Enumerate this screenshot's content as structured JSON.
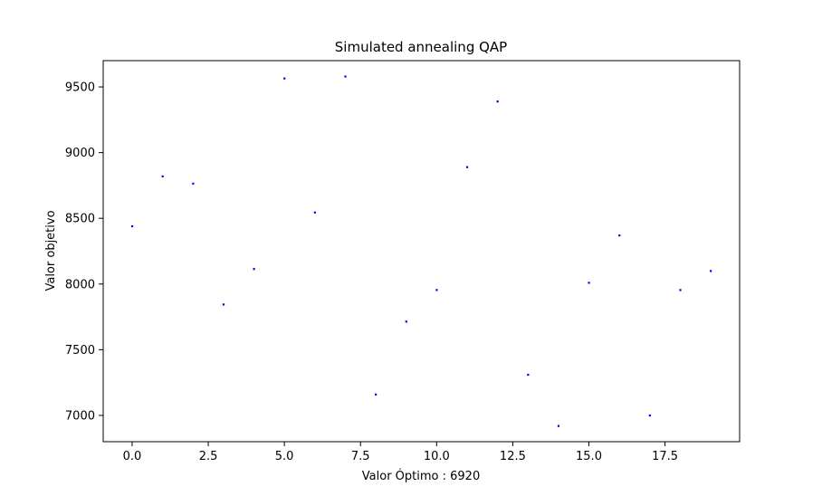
{
  "chart_data": {
    "type": "scatter",
    "title": "Simulated annealing QAP",
    "xlabel": "Valor Óptimo : 6920",
    "ylabel": "Valor objetivo",
    "x": [
      0,
      1,
      2,
      3,
      4,
      5,
      6,
      7,
      8,
      9,
      10,
      11,
      12,
      13,
      14,
      15,
      16,
      17,
      18,
      19
    ],
    "y": [
      8440,
      8820,
      8765,
      7845,
      8115,
      9565,
      8545,
      9580,
      7160,
      7715,
      7955,
      8890,
      9390,
      7310,
      6920,
      8010,
      8370,
      7000,
      7955,
      8100
    ],
    "xlim": [
      -0.95,
      19.95
    ],
    "ylim": [
      6800,
      9700
    ],
    "xticks": [
      0.0,
      2.5,
      5.0,
      7.5,
      10.0,
      12.5,
      15.0,
      17.5
    ],
    "xtick_labels": [
      "0.0",
      "2.5",
      "5.0",
      "7.5",
      "10.0",
      "12.5",
      "15.0",
      "17.5"
    ],
    "yticks": [
      7000,
      7500,
      8000,
      8500,
      9000,
      9500
    ],
    "ytick_labels": [
      "7000",
      "7500",
      "8000",
      "8500",
      "9000",
      "9500"
    ],
    "marker_color": "#0000ff",
    "grid": false
  }
}
